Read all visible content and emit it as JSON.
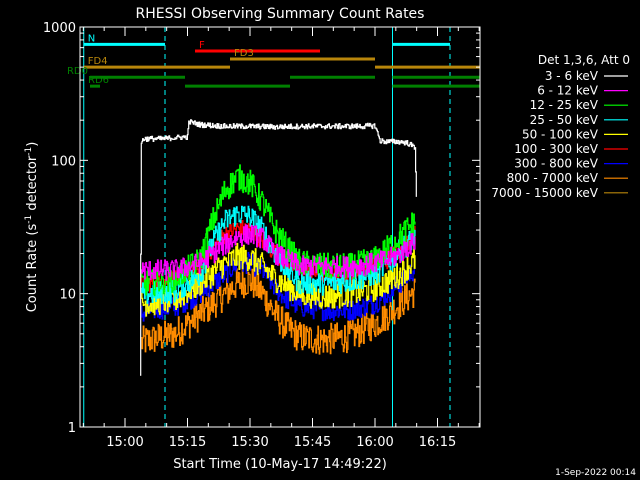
{
  "chart_data": {
    "type": "line",
    "title": "RHESSI Observing Summary Count Rates",
    "xlabel": "Start Time (10-May-17 14:49:22)",
    "ylabel": "Count Rate (s",
    "ylabel_exp1": "-1",
    "ylabel_mid": " detector",
    "ylabel_exp2": "-1",
    "ylabel_end": ")",
    "ylog": true,
    "xlim": [
      14.82,
      16.42
    ],
    "ylim": [
      1,
      1000
    ],
    "x_ticks": [
      {
        "t": 15.0,
        "label": "15:00"
      },
      {
        "t": 15.25,
        "label": "15:15"
      },
      {
        "t": 15.5,
        "label": "15:30"
      },
      {
        "t": 15.75,
        "label": "15:45"
      },
      {
        "t": 16.0,
        "label": "16:00"
      },
      {
        "t": 16.25,
        "label": "16:15"
      }
    ],
    "y_ticks": [
      {
        "v": 1,
        "label": "1"
      },
      {
        "v": 10,
        "label": "10"
      },
      {
        "v": 100,
        "label": "100"
      },
      {
        "v": 1000,
        "label": "1000"
      }
    ],
    "legend": {
      "header": "Det 1,3,6, Att 0",
      "placement": "right-outside"
    },
    "series": [
      {
        "name": "3 - 6 keV",
        "color": "#ffffff",
        "x": [
          15.06,
          15.065,
          15.07,
          15.1,
          15.15,
          15.2,
          15.25,
          15.255,
          15.3,
          15.4,
          15.5,
          15.6,
          15.7,
          15.8,
          15.9,
          15.95,
          16.0,
          16.02,
          16.05,
          16.1,
          16.13,
          16.16,
          16.165
        ],
        "y": [
          2.5,
          130,
          145,
          145,
          145,
          148,
          150,
          195,
          185,
          180,
          180,
          178,
          180,
          180,
          180,
          180,
          182,
          140,
          138,
          138,
          135,
          125,
          55
        ]
      },
      {
        "name": "6 - 12 keV",
        "color": "#ff00ff",
        "x": [
          15.065,
          15.1,
          15.2,
          15.3,
          15.38,
          15.45,
          15.5,
          15.55,
          15.6,
          15.7,
          15.8,
          15.9,
          16.0,
          16.05,
          16.1,
          16.16
        ],
        "y": [
          15,
          15,
          15,
          17,
          22,
          27,
          28,
          26,
          20,
          16,
          16,
          16,
          17,
          18,
          20,
          25
        ]
      },
      {
        "name": "12 - 25 keV",
        "color": "#00ff00",
        "x": [
          15.065,
          15.1,
          15.2,
          15.3,
          15.35,
          15.4,
          15.45,
          15.5,
          15.55,
          15.6,
          15.65,
          15.7,
          15.8,
          15.9,
          16.0,
          16.05,
          16.1,
          16.16
        ],
        "y": [
          12,
          12,
          13,
          18,
          35,
          60,
          75,
          68,
          48,
          30,
          22,
          17,
          16,
          16,
          18,
          22,
          27,
          35
        ]
      },
      {
        "name": "25 - 50 keV",
        "color": "#00ffff",
        "x": [
          15.065,
          15.1,
          15.2,
          15.3,
          15.35,
          15.4,
          15.45,
          15.5,
          15.55,
          15.6,
          15.65,
          15.7,
          15.8,
          15.9,
          16.0,
          16.05,
          16.1,
          16.16
        ],
        "y": [
          10,
          10,
          10.5,
          14,
          24,
          35,
          40,
          38,
          30,
          20,
          15,
          12,
          12,
          12.5,
          14,
          17,
          21,
          27
        ]
      },
      {
        "name": "50 - 100 keV",
        "color": "#ffff00",
        "x": [
          15.065,
          15.1,
          15.2,
          15.3,
          15.4,
          15.45,
          15.5,
          15.55,
          15.6,
          15.7,
          15.8,
          15.9,
          16.0,
          16.1,
          16.16
        ],
        "y": [
          8.5,
          8.5,
          9,
          12,
          17,
          19,
          18.5,
          16,
          13,
          10,
          9.5,
          10,
          11,
          14,
          18
        ]
      },
      {
        "name": "100 - 300 keV",
        "color": "#ff0000",
        "x": [
          15.065,
          15.1,
          15.2,
          15.3,
          15.35,
          15.4,
          15.45,
          15.5,
          15.55,
          15.6,
          15.65,
          15.7,
          15.8,
          15.9,
          16.0,
          16.05,
          16.1,
          16.16
        ],
        "y": [
          12,
          12,
          13,
          16,
          22,
          28,
          31,
          30,
          25,
          20,
          17,
          15,
          14,
          14,
          16,
          18,
          22,
          28
        ]
      },
      {
        "name": "300 - 800 keV",
        "color": "#0000ff",
        "x": [
          15.065,
          15.1,
          15.2,
          15.3,
          15.4,
          15.45,
          15.5,
          15.55,
          15.6,
          15.65,
          15.7,
          15.8,
          15.9,
          16.0,
          16.05,
          16.1,
          16.16
        ],
        "y": [
          7,
          7.5,
          8,
          10,
          14,
          17,
          17,
          15,
          11,
          9,
          8,
          7.5,
          7.5,
          8.5,
          10,
          12,
          15.5
        ]
      },
      {
        "name": "800 - 7000 keV",
        "color": "#ff8c00",
        "x": [
          15.065,
          15.1,
          15.2,
          15.3,
          15.4,
          15.45,
          15.5,
          15.55,
          15.6,
          15.65,
          15.7,
          15.8,
          15.9,
          16.0,
          16.05,
          16.1,
          16.16
        ],
        "y": [
          4.3,
          4.5,
          5,
          7,
          10,
          12,
          12.5,
          10,
          7,
          5.5,
          4.7,
          4.5,
          4.8,
          6,
          7,
          8.5,
          10.5
        ]
      },
      {
        "name": "7000 - 15000 keV",
        "color": "#b8860b",
        "x": [],
        "y": []
      }
    ],
    "annotations": {
      "vlines_solid": [
        14.835,
        16.07
      ],
      "vlines_dashed": [
        15.16,
        16.3
      ],
      "bars": [
        {
          "label": "N",
          "color": "#00ffff",
          "row_v": 740,
          "segments": [
            [
              14.835,
              15.16
            ],
            [
              16.07,
              16.3
            ]
          ]
        },
        {
          "label": "F",
          "color": "#ff0000",
          "row_v": 660,
          "segments": [
            [
              15.28,
              15.78
            ]
          ]
        },
        {
          "label": "FD3",
          "color": "#b8860b",
          "row_v": 575,
          "segments": [
            [
              15.42,
              16.0
            ]
          ]
        },
        {
          "label": "FD4",
          "color": "#b8860b",
          "row_v": 500,
          "segments": [
            [
              14.835,
              15.42
            ],
            [
              16.0,
              16.42
            ]
          ]
        },
        {
          "label": "RD0",
          "color": "#008000",
          "row_v": 420,
          "segments": [
            [
              14.86,
              15.24
            ],
            [
              15.66,
              16.0
            ],
            [
              16.07,
              16.42
            ]
          ]
        },
        {
          "label": "RD6",
          "color": "#008000",
          "row_v": 360,
          "segments": [
            [
              14.86,
              14.9
            ],
            [
              15.24,
              15.66
            ],
            [
              16.07,
              16.42
            ]
          ]
        }
      ]
    },
    "footer": "1-Sep-2022 00:14"
  }
}
